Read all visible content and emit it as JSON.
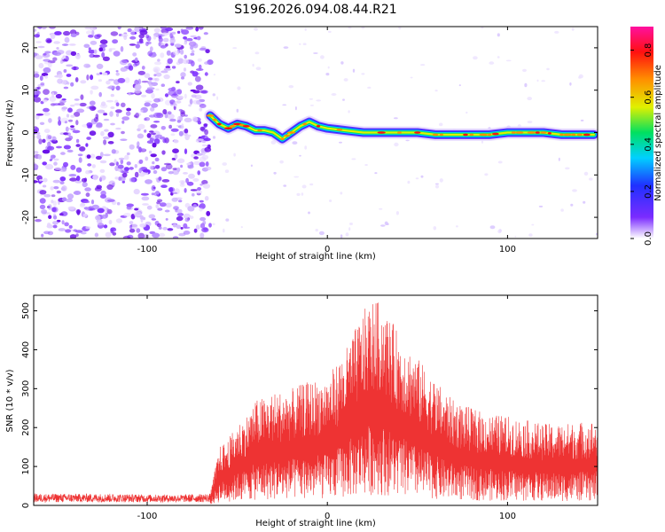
{
  "title": "S196.2026.094.08.44.R21",
  "colors": {
    "snr_line": "#ee3333",
    "axis": "#000000",
    "noise_purple": "#7b2cff"
  },
  "chart_data": [
    {
      "type": "heatmap",
      "name": "spectrogram",
      "xlabel": "Height of straight line (km)",
      "ylabel": "Frequency (Hz)",
      "xlim": [
        -163,
        150
      ],
      "ylim": [
        -25,
        25
      ],
      "x_ticks": [
        -100,
        0,
        100
      ],
      "y_ticks": [
        20,
        10,
        0,
        -10,
        -20
      ],
      "x_tick_labels": [
        "-100",
        "0",
        "100"
      ],
      "y_tick_labels": [
        "20",
        "10",
        "0",
        "-10",
        "-20"
      ],
      "colorbar": {
        "label": "Normalized spectral amplitude",
        "range": [
          0,
          0.9
        ],
        "ticks": [
          0.0,
          0.2,
          0.4,
          0.6,
          0.8
        ],
        "tick_labels": [
          "0.0",
          "0.2",
          "0.4",
          "0.6",
          "0.8"
        ],
        "colormap": [
          "#ffffff",
          "#7b2cff",
          "#2030ff",
          "#00d0ff",
          "#00e060",
          "#e0f000",
          "#ff9000",
          "#ff1010",
          "#ff10a0"
        ]
      },
      "noise_region_x": [
        -163,
        -65
      ],
      "signal_track": {
        "x": [
          -65,
          -60,
          -55,
          -50,
          -45,
          -40,
          -35,
          -30,
          -25,
          -20,
          -15,
          -10,
          -5,
          0,
          10,
          20,
          30,
          40,
          50,
          60,
          70,
          80,
          90,
          100,
          110,
          120,
          130,
          140,
          148
        ],
        "frequency": [
          4,
          2,
          1,
          2,
          1.5,
          0.5,
          0.5,
          0,
          -1.5,
          0,
          1.5,
          2.5,
          1.5,
          1,
          0.5,
          0,
          0,
          0,
          0,
          -0.5,
          -0.5,
          -0.5,
          -0.5,
          0,
          0,
          0,
          -0.5,
          -0.5,
          -0.5
        ]
      }
    },
    {
      "type": "line",
      "name": "snr",
      "xlabel": "Height of straight line (km)",
      "ylabel": "SNR (10 * v/v)",
      "xlim": [
        -163,
        150
      ],
      "ylim": [
        0,
        540
      ],
      "x_ticks": [
        -100,
        0,
        100
      ],
      "y_ticks": [
        0,
        100,
        200,
        300,
        400,
        500
      ],
      "x_tick_labels": [
        "-100",
        "0",
        "100"
      ],
      "y_tick_labels": [
        "0",
        "100",
        "200",
        "300",
        "400",
        "500"
      ],
      "series": [
        {
          "name": "SNR",
          "color": "#ee3333",
          "x": [
            -163,
            -140,
            -120,
            -100,
            -80,
            -65,
            -60,
            -55,
            -50,
            -45,
            -40,
            -30,
            -20,
            -10,
            0,
            10,
            20,
            25,
            30,
            40,
            50,
            60,
            70,
            80,
            90,
            100,
            110,
            120,
            130,
            140,
            150
          ],
          "peak": [
            30,
            30,
            30,
            28,
            28,
            30,
            150,
            170,
            210,
            230,
            270,
            290,
            300,
            320,
            330,
            400,
            500,
            530,
            520,
            440,
            380,
            320,
            270,
            250,
            235,
            230,
            220,
            210,
            210,
            215,
            220
          ]
        }
      ]
    }
  ]
}
